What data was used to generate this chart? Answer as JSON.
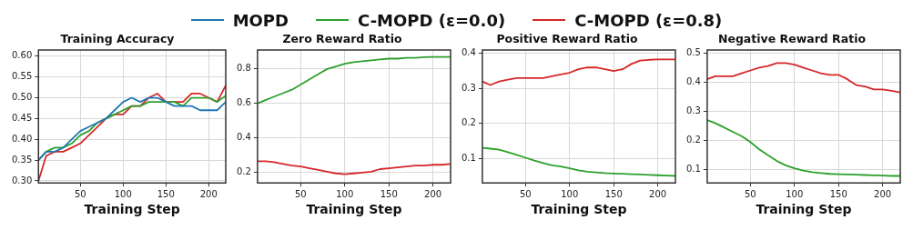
{
  "chart_data": [
    {
      "type": "line",
      "title": "Training Accuracy",
      "xlabel": "Training Step",
      "x": [
        1,
        10,
        20,
        30,
        40,
        50,
        60,
        70,
        80,
        90,
        100,
        110,
        120,
        130,
        140,
        150,
        160,
        170,
        180,
        190,
        200,
        210,
        220
      ],
      "xlim": [
        1,
        220
      ],
      "xticks": [
        50,
        100,
        150,
        200
      ],
      "ylim": [
        0.295,
        0.615
      ],
      "yticks": [
        {
          "value": 0.3,
          "label": "0.30"
        },
        {
          "value": 0.35,
          "label": "0.35"
        },
        {
          "value": 0.4,
          "label": "0.40"
        },
        {
          "value": 0.45,
          "label": "0.45"
        },
        {
          "value": 0.5,
          "label": "0.50"
        },
        {
          "value": 0.55,
          "label": "0.55"
        },
        {
          "value": 0.6,
          "label": "0.60"
        }
      ],
      "grid": true,
      "legend": "top",
      "marker": "none",
      "line_style": "solid",
      "series": [
        {
          "name": "MOPD",
          "color": "#1f77b4",
          "values": [
            0.35,
            0.37,
            0.37,
            0.38,
            0.4,
            0.42,
            0.43,
            0.44,
            0.45,
            0.47,
            0.49,
            0.5,
            0.49,
            0.5,
            0.5,
            0.49,
            0.48,
            0.48,
            0.48,
            0.47,
            0.47,
            0.47,
            0.49
          ]
        },
        {
          "name": "C-MOPD (ε=0.0)",
          "color": "#2ca02c",
          "values": [
            0.35,
            0.37,
            0.38,
            0.38,
            0.39,
            0.41,
            0.42,
            0.44,
            0.45,
            0.46,
            0.47,
            0.48,
            0.48,
            0.49,
            0.49,
            0.49,
            0.49,
            0.48,
            0.5,
            0.5,
            0.5,
            0.49,
            0.505
          ]
        },
        {
          "name": "C-MOPD (ε=0.8)",
          "color": "#d62728",
          "values": [
            0.3,
            0.36,
            0.37,
            0.37,
            0.38,
            0.39,
            0.41,
            0.43,
            0.45,
            0.46,
            0.46,
            0.48,
            0.48,
            0.5,
            0.51,
            0.49,
            0.49,
            0.49,
            0.51,
            0.51,
            0.5,
            0.49,
            0.53
          ]
        }
      ]
    },
    {
      "type": "line",
      "title": "Zero Reward Ratio",
      "xlabel": "Training Step",
      "x": [
        1,
        10,
        20,
        30,
        40,
        50,
        60,
        70,
        80,
        90,
        100,
        110,
        120,
        130,
        140,
        150,
        160,
        170,
        180,
        190,
        200,
        210,
        220
      ],
      "xlim": [
        1,
        220
      ],
      "xticks": [
        50,
        100,
        150,
        200
      ],
      "ylim": [
        0.14,
        0.91
      ],
      "yticks": [
        0.2,
        0.4,
        0.6,
        0.8
      ],
      "grid": true,
      "marker": "none",
      "line_style": "solid",
      "series": [
        {
          "color": "#2ca02c",
          "values": [
            0.6,
            0.62,
            0.64,
            0.66,
            0.68,
            0.71,
            0.74,
            0.77,
            0.8,
            0.815,
            0.83,
            0.84,
            0.845,
            0.85,
            0.855,
            0.86,
            0.86,
            0.865,
            0.865,
            0.868,
            0.87,
            0.87,
            0.87
          ]
        },
        {
          "color": "#d62728",
          "values": [
            0.265,
            0.265,
            0.26,
            0.25,
            0.24,
            0.235,
            0.225,
            0.215,
            0.205,
            0.195,
            0.19,
            0.195,
            0.2,
            0.205,
            0.22,
            0.225,
            0.23,
            0.235,
            0.24,
            0.24,
            0.245,
            0.245,
            0.25
          ]
        }
      ]
    },
    {
      "type": "line",
      "title": "Positive Reward Ratio",
      "xlabel": "Training Step",
      "x": [
        1,
        10,
        20,
        30,
        40,
        50,
        60,
        70,
        80,
        90,
        100,
        110,
        120,
        130,
        140,
        150,
        160,
        170,
        180,
        190,
        200,
        210,
        220
      ],
      "xlim": [
        1,
        220
      ],
      "xticks": [
        50,
        100,
        150,
        200
      ],
      "ylim": [
        0.03,
        0.41
      ],
      "yticks": [
        0.1,
        0.2,
        0.3,
        0.4
      ],
      "grid": true,
      "marker": "none",
      "line_style": "solid",
      "series": [
        {
          "color": "#2ca02c",
          "values": [
            0.13,
            0.128,
            0.125,
            0.118,
            0.11,
            0.102,
            0.094,
            0.087,
            0.08,
            0.077,
            0.072,
            0.066,
            0.062,
            0.06,
            0.058,
            0.057,
            0.056,
            0.055,
            0.054,
            0.053,
            0.052,
            0.051,
            0.05
          ]
        },
        {
          "color": "#d62728",
          "values": [
            0.32,
            0.31,
            0.32,
            0.325,
            0.33,
            0.33,
            0.33,
            0.33,
            0.335,
            0.34,
            0.345,
            0.355,
            0.36,
            0.36,
            0.355,
            0.35,
            0.355,
            0.37,
            0.38,
            0.382,
            0.383,
            0.383,
            0.383
          ]
        }
      ]
    },
    {
      "type": "line",
      "title": "Negative Reward Ratio",
      "xlabel": "Training Step",
      "x": [
        1,
        10,
        20,
        30,
        40,
        50,
        60,
        70,
        80,
        90,
        100,
        110,
        120,
        130,
        140,
        150,
        160,
        170,
        180,
        190,
        200,
        210,
        220
      ],
      "xlim": [
        1,
        220
      ],
      "xticks": [
        50,
        100,
        150,
        200
      ],
      "ylim": [
        0.055,
        0.51
      ],
      "yticks": [
        0.1,
        0.2,
        0.3,
        0.4,
        0.5
      ],
      "grid": true,
      "marker": "none",
      "line_style": "solid",
      "series": [
        {
          "color": "#2ca02c",
          "values": [
            0.27,
            0.26,
            0.245,
            0.23,
            0.215,
            0.195,
            0.17,
            0.15,
            0.13,
            0.115,
            0.105,
            0.097,
            0.092,
            0.089,
            0.086,
            0.085,
            0.084,
            0.083,
            0.082,
            0.081,
            0.08,
            0.079,
            0.079
          ]
        },
        {
          "color": "#d62728",
          "values": [
            0.41,
            0.42,
            0.42,
            0.42,
            0.43,
            0.44,
            0.45,
            0.455,
            0.465,
            0.465,
            0.46,
            0.45,
            0.44,
            0.43,
            0.425,
            0.425,
            0.41,
            0.39,
            0.385,
            0.375,
            0.375,
            0.37,
            0.365
          ]
        }
      ]
    }
  ]
}
